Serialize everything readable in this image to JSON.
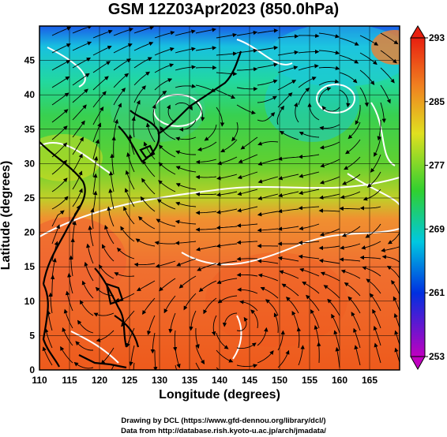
{
  "title": "GSM 12Z03Apr2023 (850.0hPa)",
  "xlabel": "Longitude (degrees)",
  "ylabel": "Latitude  (degrees)",
  "x_ticks": [
    "110",
    "115",
    "120",
    "125",
    "130",
    "135",
    "140",
    "145",
    "150",
    "155",
    "160",
    "165"
  ],
  "y_ticks": [
    "0",
    "5",
    "10",
    "15",
    "20",
    "25",
    "30",
    "35",
    "40",
    "45"
  ],
  "colorbar_ticks": [
    "293",
    "285",
    "277",
    "269",
    "261",
    "253"
  ],
  "credit_line1": "Drawing by DCL (https://www.gfd-dennou.org/library/dcl/)",
  "credit_line2": "Data from http://database.rish.kyoto-u.ac.jp/arch/jmadata/",
  "chart_data": {
    "type": "heatmap",
    "title": "GSM 12Z03Apr2023 (850.0hPa)",
    "xlabel": "Longitude (degrees)",
    "ylabel": "Latitude  (degrees)",
    "xlim": [
      110,
      170
    ],
    "ylim": [
      0,
      50
    ],
    "colorbar_range": [
      253,
      293
    ],
    "colorbar_ticks": [
      293,
      285,
      277,
      269,
      261,
      253
    ],
    "colors": {
      "cold": "#c000c0",
      "blue": "#0040e0",
      "cyan": "#00c8e0",
      "green": "#30d030",
      "yellow": "#e0e020",
      "orange": "#f08020",
      "red": "#e83010"
    },
    "grid": true,
    "overlays": [
      "streamlines",
      "coastlines",
      "white contours"
    ]
  }
}
